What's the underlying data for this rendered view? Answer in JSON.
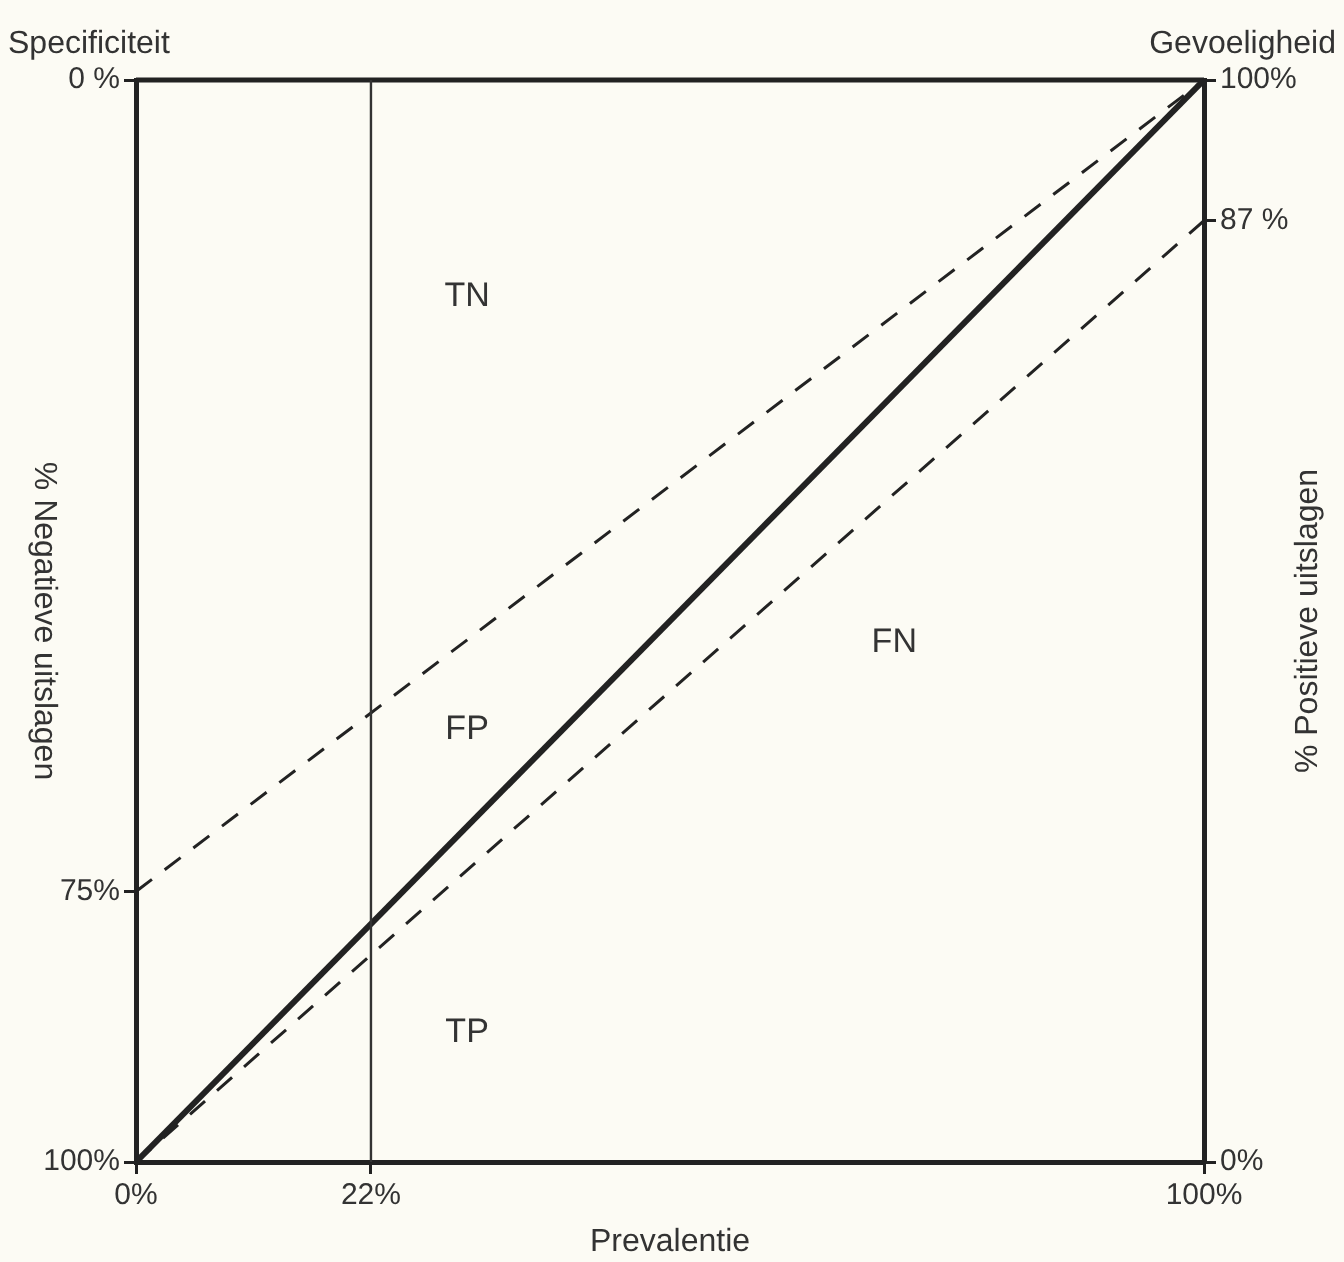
{
  "chart_data": {
    "type": "line",
    "xlabel": "Prevalentie",
    "ylabel": "% Negatieve uitslagen",
    "y2label": "% Positieve uitslagen",
    "annotations": [
      "Specificiteit",
      "Gevoeligheid",
      "TN",
      "FP",
      "FN",
      "TP"
    ],
    "x": [
      0,
      100
    ],
    "series": [
      {
        "color": "#222222",
        "axis": "y2",
        "values": [
          0,
          100
        ],
        "line_style": "solid"
      },
      {
        "color": "#222222",
        "axis": "y",
        "values": [
          75,
          0
        ],
        "line_style": "dashed"
      },
      {
        "color": "#222222",
        "axis": "y2",
        "values": [
          0,
          87
        ],
        "line_style": "dashed"
      }
    ],
    "xlim": [
      0,
      100
    ],
    "xticks": [
      {
        "value": 0,
        "label": "0%"
      },
      {
        "value": 22,
        "label": "22%"
      },
      {
        "value": 100,
        "label": "100%"
      }
    ],
    "ylim": [
      100,
      0
    ],
    "yticks": [
      {
        "value": 0,
        "label": "0 %"
      },
      {
        "value": 75,
        "label": "75%"
      },
      {
        "value": 100,
        "label": "100%"
      }
    ],
    "y2lim": [
      0,
      100
    ],
    "y2ticks": [
      {
        "value": 0,
        "label": "0%"
      },
      {
        "value": 87,
        "label": "87 %"
      },
      {
        "value": 100,
        "label": "100%"
      }
    ],
    "ref_lines": [
      {
        "axis": "x",
        "value": 22,
        "color": "#333333"
      }
    ],
    "grid": false,
    "legend": false,
    "marker": "none"
  }
}
